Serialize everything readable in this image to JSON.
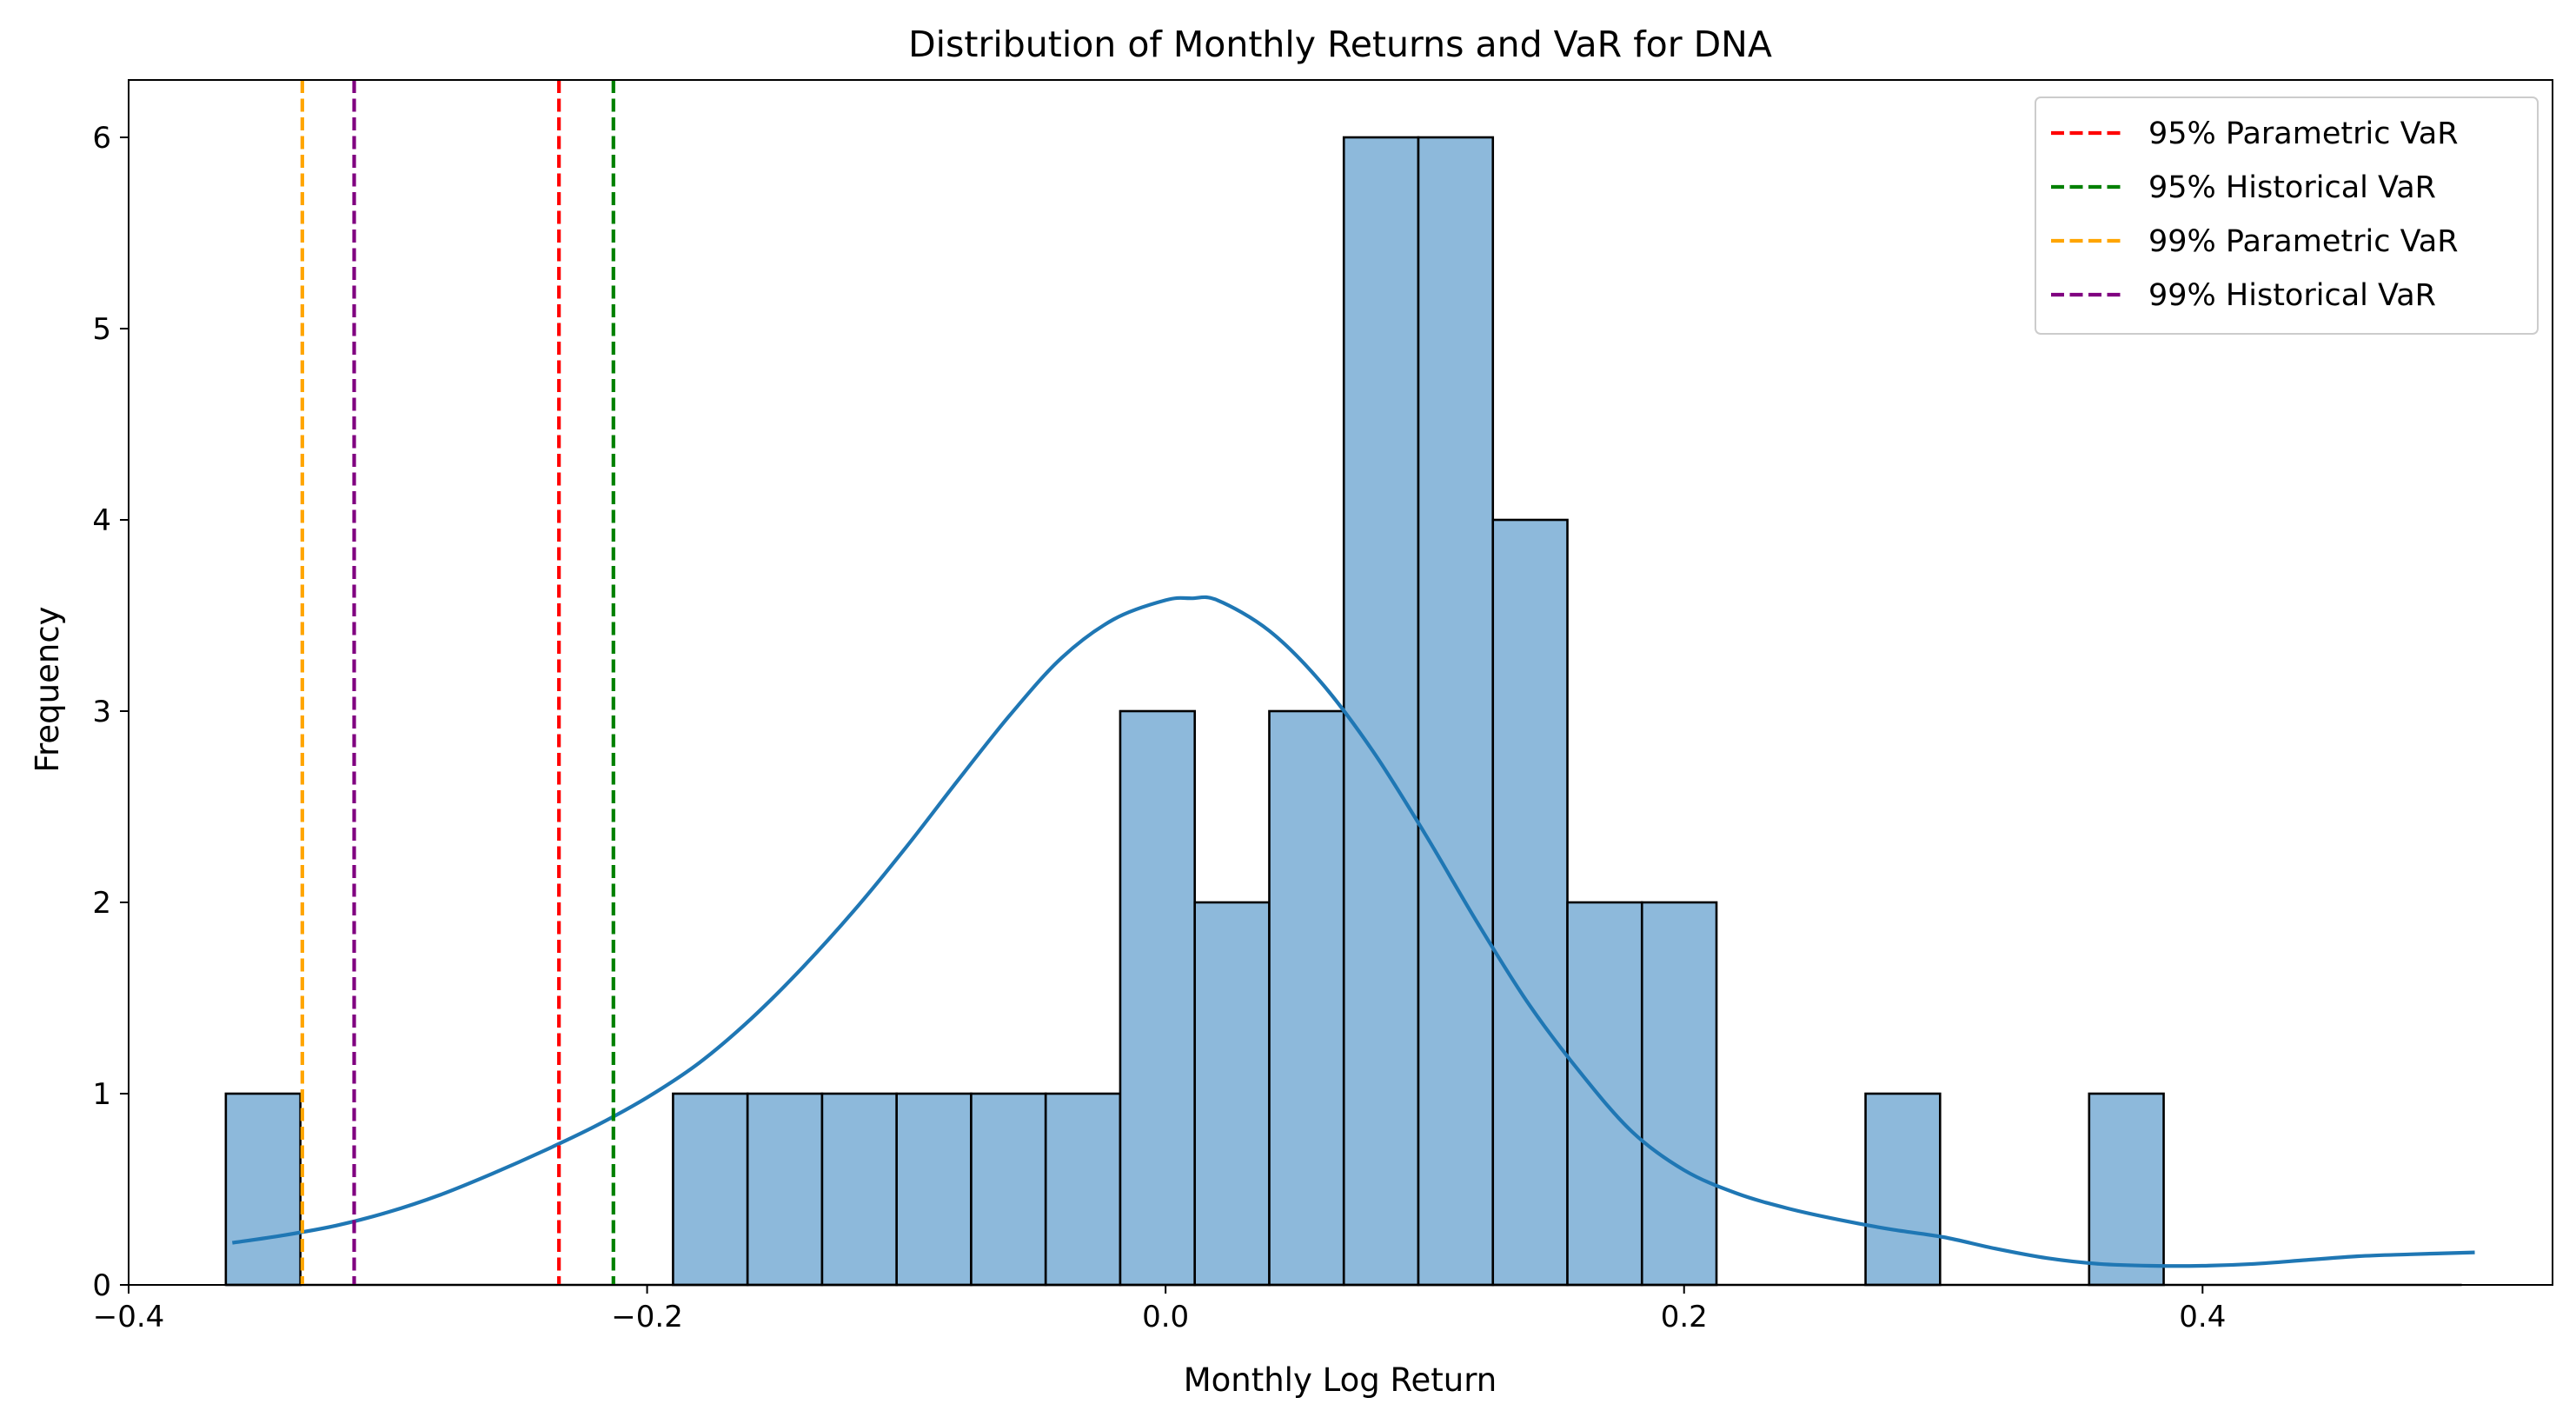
{
  "chart_data": {
    "type": "bar",
    "title": "Distribution of Monthly Returns and VaR for DNA",
    "xlabel": "Monthly Log Return",
    "ylabel": "Frequency",
    "xlim": [
      -0.4,
      0.535
    ],
    "ylim": [
      0,
      6.3
    ],
    "xticks": [
      -0.4,
      -0.2,
      0.0,
      0.2,
      0.4
    ],
    "xtick_labels": [
      "−0.4",
      "−0.2",
      "0.0",
      "0.2",
      "0.4"
    ],
    "yticks": [
      0,
      1,
      2,
      3,
      4,
      5,
      6
    ],
    "ytick_labels": [
      "0",
      "1",
      "2",
      "3",
      "4",
      "5",
      "6"
    ],
    "grid": false,
    "legend_position": "top-right",
    "histogram": {
      "bin_start": -0.3625,
      "bin_width": 0.02875,
      "counts": [
        1,
        0,
        0,
        0,
        0,
        0,
        1,
        1,
        1,
        1,
        1,
        1,
        3,
        2,
        3,
        6,
        6,
        4,
        2,
        2,
        0,
        0,
        1,
        0,
        0,
        1,
        0,
        0,
        0,
        0
      ],
      "fill_color": "#8DB9DB",
      "edge_color": "#000000"
    },
    "kde": {
      "color": "#1F77B4",
      "x": [
        -0.36,
        -0.34,
        -0.32,
        -0.3,
        -0.28,
        -0.26,
        -0.24,
        -0.22,
        -0.2,
        -0.18,
        -0.16,
        -0.14,
        -0.12,
        -0.1,
        -0.08,
        -0.06,
        -0.04,
        -0.02,
        0.0,
        0.01,
        0.02,
        0.04,
        0.06,
        0.08,
        0.1,
        0.12,
        0.14,
        0.16,
        0.18,
        0.2,
        0.22,
        0.24,
        0.26,
        0.28,
        0.3,
        0.32,
        0.34,
        0.36,
        0.38,
        0.4,
        0.42,
        0.44,
        0.46,
        0.48,
        0.505
      ],
      "y": [
        0.22,
        0.26,
        0.31,
        0.38,
        0.47,
        0.58,
        0.7,
        0.83,
        0.98,
        1.16,
        1.39,
        1.66,
        1.96,
        2.29,
        2.64,
        2.98,
        3.28,
        3.48,
        3.58,
        3.59,
        3.58,
        3.42,
        3.15,
        2.79,
        2.36,
        1.9,
        1.47,
        1.11,
        0.8,
        0.6,
        0.48,
        0.4,
        0.34,
        0.29,
        0.25,
        0.19,
        0.14,
        0.11,
        0.1,
        0.1,
        0.11,
        0.13,
        0.15,
        0.16,
        0.17
      ]
    },
    "vlines": [
      {
        "name": "95% Parametric VaR",
        "x": -0.234,
        "color": "#FF0000"
      },
      {
        "name": "95% Historical VaR",
        "x": -0.213,
        "color": "#008000"
      },
      {
        "name": "99% Parametric VaR",
        "x": -0.333,
        "color": "#FFA500"
      },
      {
        "name": "99% Historical VaR",
        "x": -0.313,
        "color": "#800080"
      }
    ]
  }
}
